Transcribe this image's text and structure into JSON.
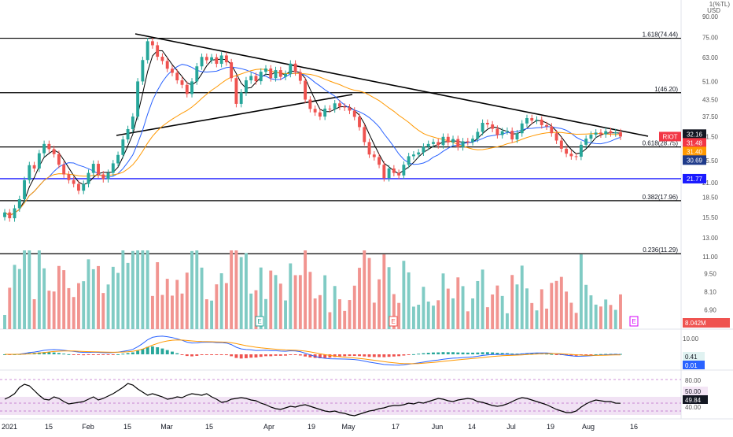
{
  "header": {
    "currency_top": "1(%TL)",
    "currency": "USD"
  },
  "price_axis": {
    "ticks": [
      "90.00",
      "75.00",
      "63.00",
      "51.00",
      "43.50",
      "37.50",
      "31.50",
      "25.50",
      "21.00",
      "18.50",
      "15.50",
      "13.00",
      "11.00",
      "9.50",
      "8.10",
      "6.90"
    ],
    "tick_prices": [
      90,
      75,
      63,
      51,
      43.5,
      37.5,
      31.5,
      25.5,
      21,
      18.5,
      15.5,
      13,
      11,
      9.5,
      8.1,
      6.9
    ]
  },
  "x_axis": {
    "labels": [
      "2021",
      "15",
      "Feb",
      "15",
      "Mar",
      "15",
      "Apr",
      "19",
      "May",
      "17",
      "Jun",
      "14",
      "Jul",
      "19",
      "Aug",
      "16"
    ]
  },
  "fib_levels": [
    {
      "label": "1.618(74.44)",
      "price": 74.44
    },
    {
      "label": "1(46.20)",
      "price": 46.2
    },
    {
      "label": "0.618(28.75)",
      "price": 28.75
    },
    {
      "label": "0.382(17.96)",
      "price": 17.96
    },
    {
      "label": "0.236(11.29)",
      "price": 11.29
    }
  ],
  "support_line": {
    "price": 21.77,
    "label": "21.77"
  },
  "price_badges": [
    {
      "text": "32.16",
      "price": 32.16,
      "bg": "#131722",
      "fg": "#ffffff"
    },
    {
      "text": "RIOT",
      "price": 31.48,
      "bg": "#f23645",
      "fg": "#ffffff"
    },
    {
      "text": "31.48",
      "price": 31.48,
      "bg": "#f23645",
      "fg": "#ffffff"
    },
    {
      "text": "31.40",
      "price": 31.4,
      "bg": "#ff9800",
      "fg": "#ffffff"
    },
    {
      "text": "30.69",
      "price": 30.69,
      "bg": "#1e3a8a",
      "fg": "#ffffff"
    },
    {
      "text": "21.77",
      "price": 21.77,
      "bg": "#1a1aff",
      "fg": "#ffffff"
    }
  ],
  "volume": {
    "label": "8.042M",
    "earnings_marker": "E"
  },
  "macd": {
    "ticks": [
      "10.00",
      "0.00"
    ],
    "badges": [
      "0.41",
      "0.01"
    ]
  },
  "rsi": {
    "ticks": [
      "80.00",
      "50.00",
      "40.00"
    ],
    "badges": [
      "50.00",
      "49.84"
    ]
  },
  "colors": {
    "up": "#26a69a",
    "down": "#ef5350",
    "ma_fast": "#000000",
    "ma_mid": "#2962ff",
    "ma_slow": "#ff9800",
    "rsi_band": "#e1bee7"
  },
  "chart_data": {
    "type": "candlestick",
    "symbol": "RIOT",
    "currency": "USD",
    "scale": "log",
    "ylim": [
      6.9,
      90
    ],
    "close": [
      16.2,
      15.4,
      16.8,
      18.2,
      21.5,
      24.5,
      23.8,
      27.2,
      29.5,
      28.2,
      27.0,
      24.6,
      22.6,
      21.5,
      20.8,
      19.6,
      20.8,
      22.9,
      24.8,
      22.6,
      21.7,
      22.9,
      24.9,
      26.8,
      30.7,
      33.6,
      37.5,
      51.0,
      61.5,
      72.5,
      70.0,
      63.3,
      61.0,
      57.0,
      55.0,
      51.5,
      49.5,
      45.7,
      51.0,
      58.2,
      63.2,
      61.4,
      63.0,
      59.5,
      64.0,
      60.3,
      52.5,
      41.9,
      46.3,
      51.5,
      53.5,
      51.1,
      55.5,
      57.1,
      52.5,
      56.3,
      53.1,
      54.5,
      59.6,
      55.3,
      51.3,
      43.5,
      40.1,
      38.9,
      37.5,
      40.2,
      40.0,
      42.1,
      40.9,
      40.6,
      39.5,
      37.4,
      34.2,
      30.0,
      26.9,
      26.3,
      24.6,
      21.9,
      23.8,
      22.9,
      22.4,
      24.6,
      26.5,
      26.9,
      27.4,
      28.8,
      29.5,
      30.0,
      29.2,
      31.4,
      29.9,
      30.8,
      28.7,
      30.2,
      30.0,
      30.9,
      32.8,
      35.5,
      35.0,
      33.7,
      31.9,
      33.0,
      33.1,
      30.7,
      32.4,
      35.3,
      37.0,
      36.2,
      36.5,
      34.8,
      34.4,
      32.4,
      30.4,
      28.3,
      27.1,
      26.5,
      26.4,
      29.3,
      30.9,
      32.0,
      32.6,
      32.1,
      33.0,
      32.4,
      32.7,
      31.48
    ],
    "rsi": [
      55,
      58,
      62,
      70,
      74,
      72,
      66,
      60,
      55,
      54,
      58,
      56,
      52,
      49,
      50,
      51,
      52,
      55,
      58,
      54,
      56,
      59,
      62,
      66,
      70,
      75,
      73,
      68,
      64,
      60,
      62,
      60,
      58,
      55,
      56,
      58,
      57,
      60,
      62,
      61,
      60,
      62,
      58,
      55,
      51,
      52,
      55,
      56,
      57,
      56,
      54,
      53,
      50,
      48,
      45,
      43,
      42,
      44,
      46,
      45,
      47,
      48,
      46,
      44,
      42,
      40,
      39,
      40,
      38,
      37,
      35,
      34,
      36,
      38,
      40,
      41,
      43,
      44,
      46,
      47,
      47,
      48,
      50,
      49,
      51,
      50,
      52,
      54,
      56,
      55,
      53,
      52,
      54,
      55,
      56,
      55,
      52,
      51,
      49,
      47,
      46,
      47,
      49,
      52,
      55,
      57,
      56,
      54,
      52,
      50,
      48,
      45,
      42,
      40,
      38,
      38,
      40,
      45,
      49,
      52,
      54,
      53,
      52,
      52,
      50,
      49.84
    ],
    "support": 21.77,
    "rsi_levels": [
      80,
      50,
      40
    ]
  }
}
